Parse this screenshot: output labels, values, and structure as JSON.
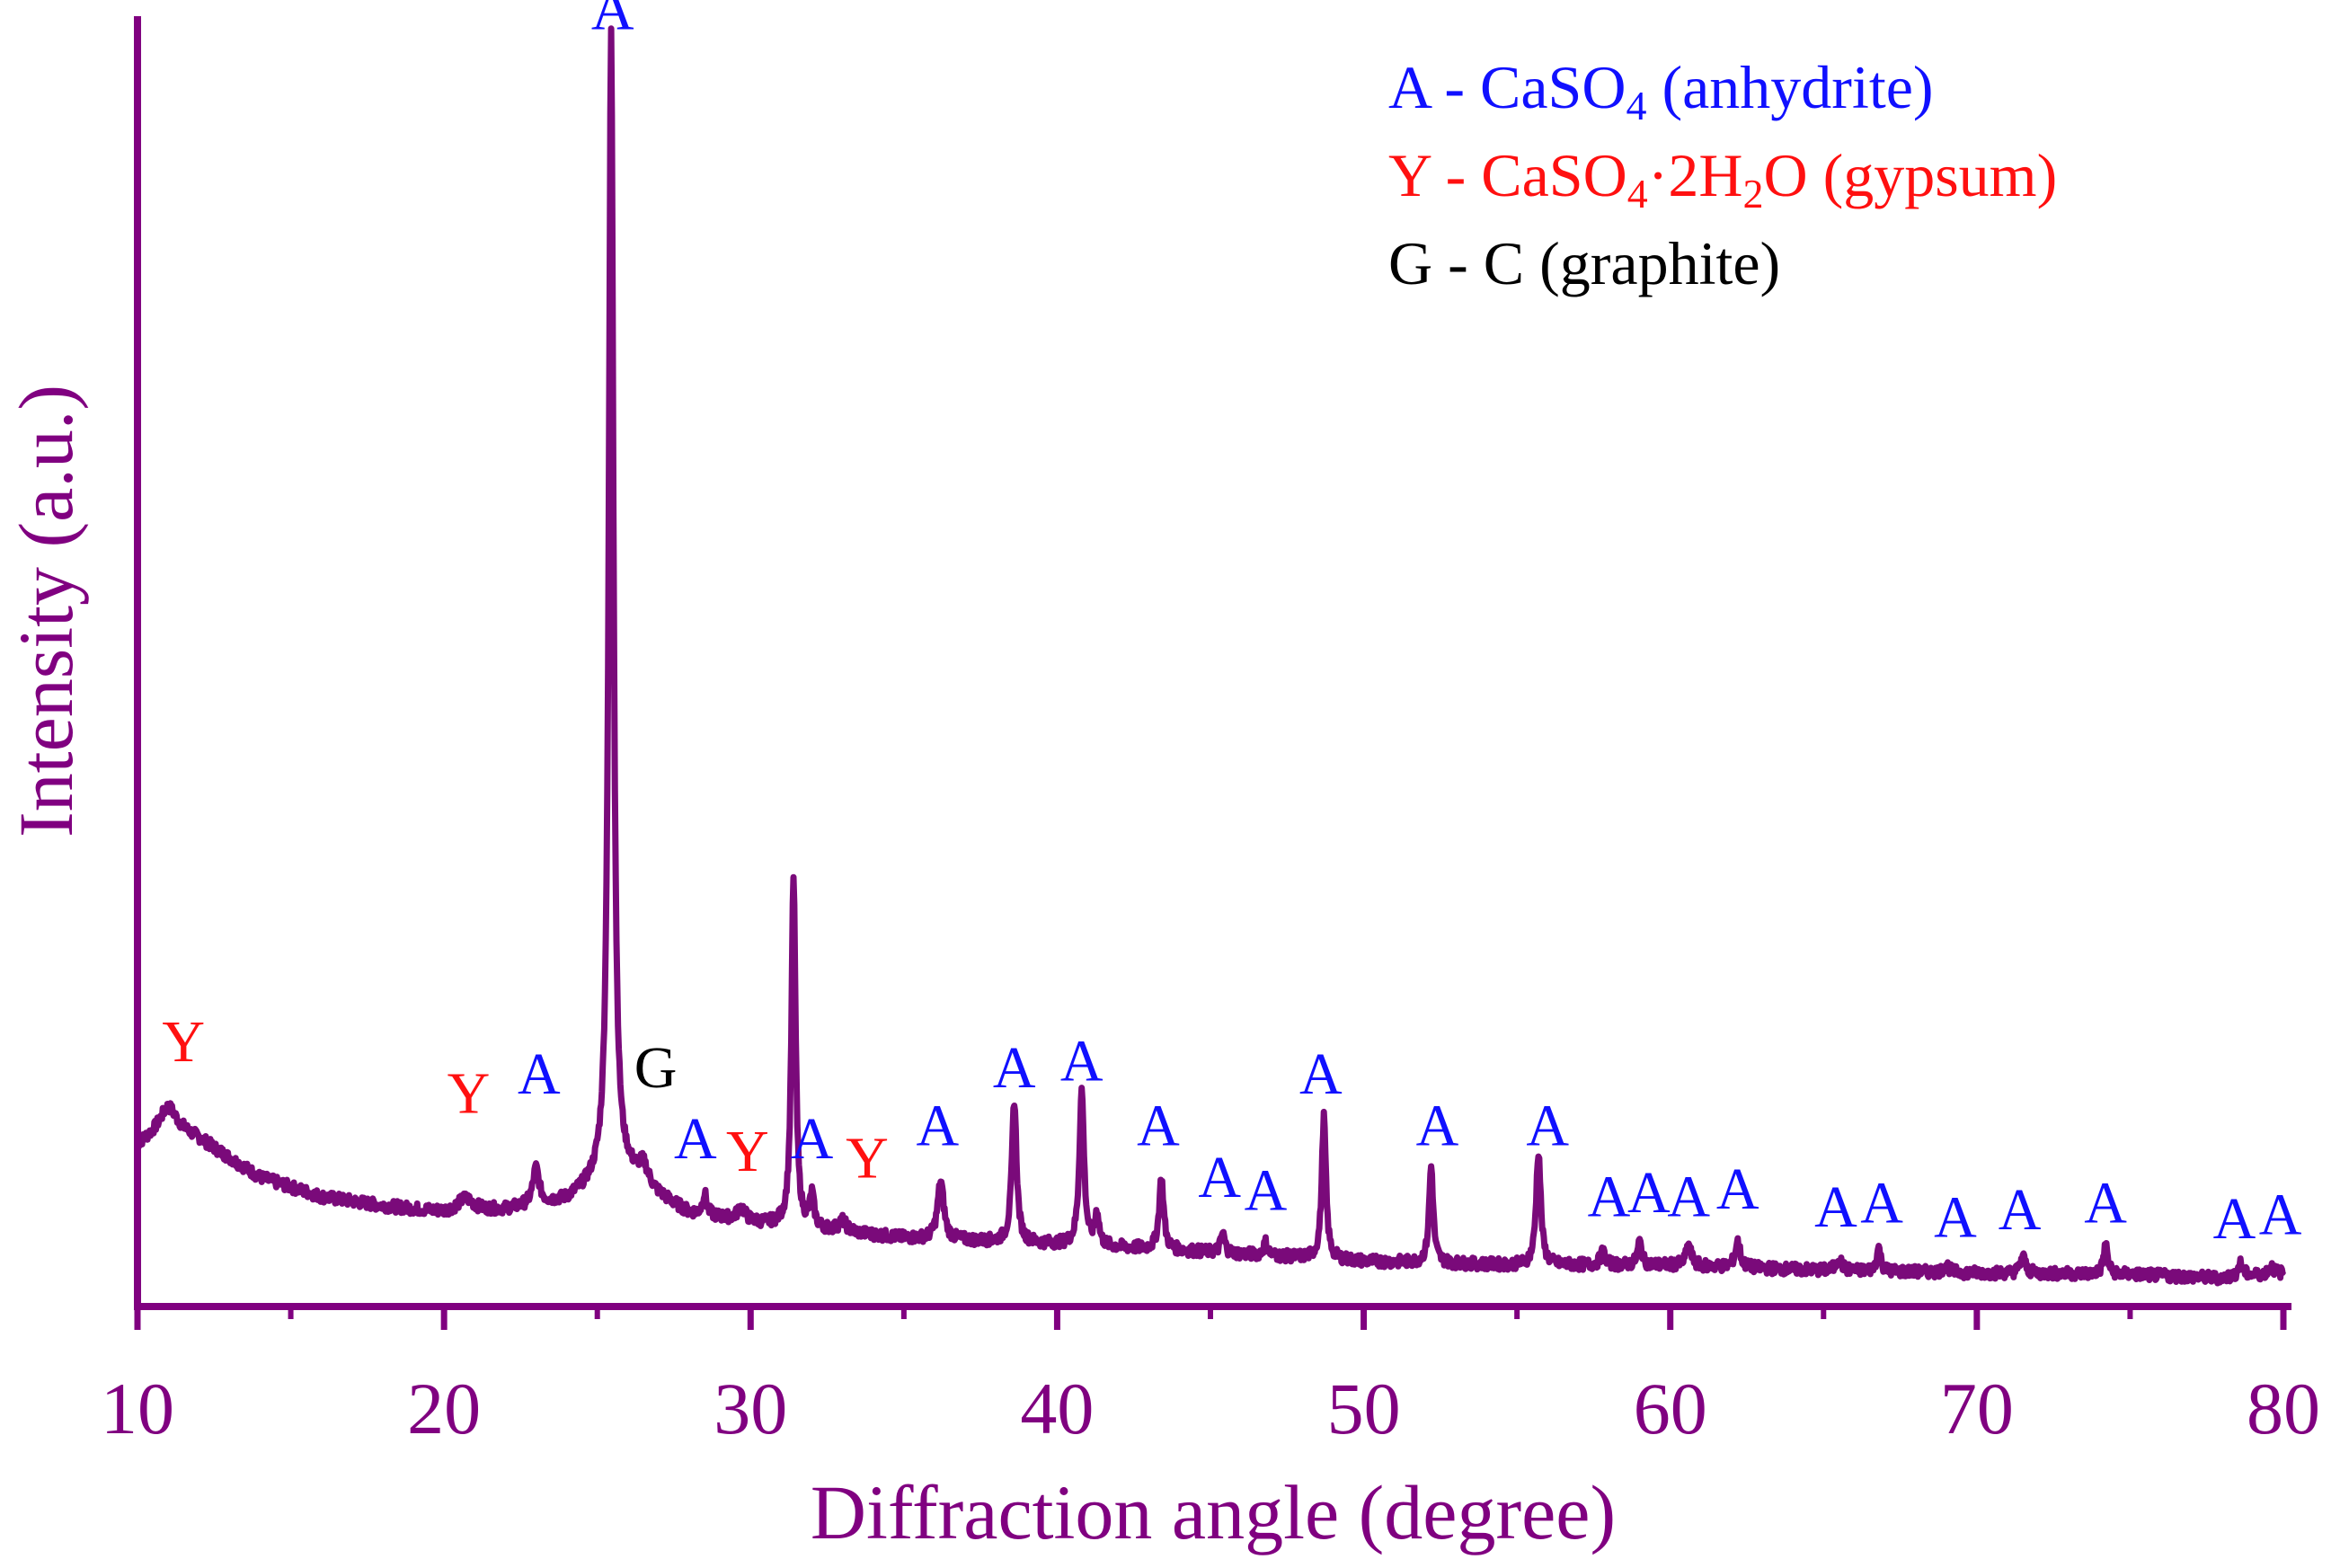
{
  "chart_data": {
    "type": "line",
    "xlabel": "Diffraction angle (degree)",
    "ylabel": "Intensity (a.u.)",
    "xlim": [
      10,
      80
    ],
    "ylim": [
      0,
      100
    ],
    "x_ticks": [
      "10",
      "20",
      "30",
      "40",
      "50",
      "60",
      "70",
      "80"
    ],
    "minor_ticks": [
      15,
      25,
      35,
      45,
      55,
      65,
      75
    ],
    "y_ticks_shown": false,
    "grid": false,
    "colors": {
      "axis": "#800080",
      "line": "#7a0a7a",
      "A": "#1010ff",
      "Y": "#ff1010",
      "G": "#000000"
    },
    "legend": {
      "placement": "top-right",
      "entries": [
        {
          "key": "A",
          "name_parts": [
            {
              "t": "A - CaSO"
            },
            {
              "t": "4",
              "sub": true
            },
            {
              "t": " (anhydrite)"
            }
          ]
        },
        {
          "key": "Y",
          "name_parts": [
            {
              "t": "Y - CaSO"
            },
            {
              "t": "4",
              "sub": true
            },
            {
              "t": "·2H"
            },
            {
              "t": "2",
              "sub": true
            },
            {
              "t": "O (gypsum)"
            }
          ]
        },
        {
          "key": "G",
          "name_parts": [
            {
              "t": "G - C (graphite)"
            }
          ]
        }
      ]
    },
    "baseline": [
      [
        10,
        12.5
      ],
      [
        11,
        14
      ],
      [
        12,
        13
      ],
      [
        14,
        10
      ],
      [
        16,
        8.5
      ],
      [
        18,
        7.8
      ],
      [
        20,
        7.3
      ],
      [
        22,
        7.5
      ],
      [
        24,
        8.2
      ],
      [
        25,
        9.5
      ],
      [
        26,
        10
      ],
      [
        27,
        8.5
      ],
      [
        28,
        7.2
      ],
      [
        30,
        6.5
      ],
      [
        32,
        6
      ],
      [
        35,
        5.3
      ],
      [
        40,
        4.8
      ],
      [
        45,
        4.2
      ],
      [
        50,
        3.5
      ],
      [
        55,
        3.2
      ],
      [
        60,
        3.2
      ],
      [
        65,
        2.8
      ],
      [
        70,
        2.6
      ],
      [
        75,
        2.5
      ],
      [
        78,
        2.2
      ],
      [
        80,
        2.6
      ]
    ],
    "peaks": [
      {
        "x": 11.0,
        "h": 1.5,
        "w": 0.35
      },
      {
        "x": 20.7,
        "h": 1.0,
        "w": 0.3
      },
      {
        "x": 23.0,
        "h": 2.8,
        "w": 0.12
      },
      {
        "x": 25.45,
        "h": 89.0,
        "w": 0.09
      },
      {
        "x": 26.5,
        "h": 1.5,
        "w": 0.2
      },
      {
        "x": 28.5,
        "h": 1.6,
        "w": 0.08
      },
      {
        "x": 29.7,
        "h": 1.0,
        "w": 0.15
      },
      {
        "x": 31.4,
        "h": 27.0,
        "w": 0.08
      },
      {
        "x": 32.0,
        "h": 2.5,
        "w": 0.08
      },
      {
        "x": 33.0,
        "h": 0.8,
        "w": 0.15
      },
      {
        "x": 36.2,
        "h": 4.5,
        "w": 0.12
      },
      {
        "x": 38.6,
        "h": 11.0,
        "w": 0.09
      },
      {
        "x": 40.8,
        "h": 12.0,
        "w": 0.09
      },
      {
        "x": 41.3,
        "h": 2.5,
        "w": 0.08
      },
      {
        "x": 43.4,
        "h": 5.5,
        "w": 0.09
      },
      {
        "x": 45.4,
        "h": 1.5,
        "w": 0.08
      },
      {
        "x": 46.8,
        "h": 1.0,
        "w": 0.08
      },
      {
        "x": 48.7,
        "h": 11.0,
        "w": 0.08
      },
      {
        "x": 52.2,
        "h": 7.5,
        "w": 0.08
      },
      {
        "x": 55.7,
        "h": 8.8,
        "w": 0.09
      },
      {
        "x": 57.8,
        "h": 1.0,
        "w": 0.1
      },
      {
        "x": 59.0,
        "h": 1.8,
        "w": 0.08
      },
      {
        "x": 60.6,
        "h": 1.6,
        "w": 0.1
      },
      {
        "x": 62.2,
        "h": 2.0,
        "w": 0.1
      },
      {
        "x": 65.5,
        "h": 1.0,
        "w": 0.1
      },
      {
        "x": 66.8,
        "h": 1.8,
        "w": 0.08
      },
      {
        "x": 69.0,
        "h": 0.6,
        "w": 0.1
      },
      {
        "x": 71.5,
        "h": 1.3,
        "w": 0.1
      },
      {
        "x": 74.2,
        "h": 2.3,
        "w": 0.08
      },
      {
        "x": 78.6,
        "h": 1.0,
        "w": 0.1
      },
      {
        "x": 79.6,
        "h": 0.6,
        "w": 0.1
      }
    ],
    "annotations": [
      {
        "text": "Y",
        "phase": "Y",
        "x": 11.5,
        "y": 19.0
      },
      {
        "text": "Y",
        "phase": "Y",
        "x": 20.8,
        "y": 15.0
      },
      {
        "text": "A",
        "phase": "A",
        "x": 23.1,
        "y": 16.5
      },
      {
        "text": "A",
        "phase": "A",
        "x": 25.5,
        "y": 99.0
      },
      {
        "text": "G",
        "phase": "G",
        "x": 26.9,
        "y": 17.0
      },
      {
        "text": "A",
        "phase": "A",
        "x": 28.2,
        "y": 11.5
      },
      {
        "text": "Y",
        "phase": "Y",
        "x": 29.9,
        "y": 10.5
      },
      {
        "text": "A",
        "phase": "A",
        "x": 32.0,
        "y": 11.5
      },
      {
        "text": "Y",
        "phase": "Y",
        "x": 33.8,
        "y": 10.0
      },
      {
        "text": "A",
        "phase": "A",
        "x": 36.1,
        "y": 12.5
      },
      {
        "text": "A",
        "phase": "A",
        "x": 38.6,
        "y": 17.0
      },
      {
        "text": "A",
        "phase": "A",
        "x": 40.8,
        "y": 17.5
      },
      {
        "text": "A",
        "phase": "A",
        "x": 43.3,
        "y": 12.5
      },
      {
        "text": "A",
        "phase": "A",
        "x": 45.3,
        "y": 8.5
      },
      {
        "text": "A",
        "phase": "A",
        "x": 46.8,
        "y": 7.5
      },
      {
        "text": "A",
        "phase": "A",
        "x": 48.6,
        "y": 16.5
      },
      {
        "text": "A",
        "phase": "A",
        "x": 52.4,
        "y": 12.5
      },
      {
        "text": "A",
        "phase": "A",
        "x": 56.0,
        "y": 12.5
      },
      {
        "text": "A",
        "phase": "A",
        "x": 58.0,
        "y": 7.0
      },
      {
        "text": "A",
        "phase": "A",
        "x": 59.3,
        "y": 7.3
      },
      {
        "text": "A",
        "phase": "A",
        "x": 60.6,
        "y": 7.0
      },
      {
        "text": "A",
        "phase": "A",
        "x": 62.2,
        "y": 7.6
      },
      {
        "text": "A",
        "phase": "A",
        "x": 65.4,
        "y": 6.2
      },
      {
        "text": "A",
        "phase": "A",
        "x": 66.9,
        "y": 6.5
      },
      {
        "text": "A",
        "phase": "A",
        "x": 69.3,
        "y": 5.4
      },
      {
        "text": "A",
        "phase": "A",
        "x": 71.4,
        "y": 6.0
      },
      {
        "text": "A",
        "phase": "A",
        "x": 74.2,
        "y": 6.5
      },
      {
        "text": "A",
        "phase": "A",
        "x": 78.4,
        "y": 5.3
      },
      {
        "text": "A",
        "phase": "A",
        "x": 79.9,
        "y": 5.6
      }
    ]
  }
}
